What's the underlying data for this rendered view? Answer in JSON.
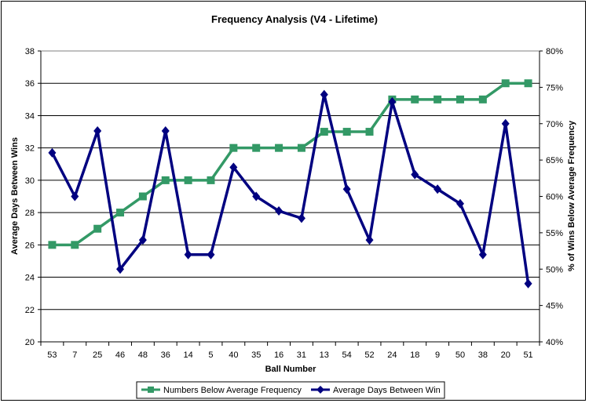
{
  "chart_data": {
    "type": "line",
    "title": "Frequency Analysis (V4 - Lifetime)",
    "xlabel": "Ball Number",
    "ylabel": "Average Days Between Wins",
    "y2label": "% of Wins Below Average Frequency",
    "ylim": [
      20,
      38
    ],
    "y2lim": [
      40,
      80
    ],
    "yticks": [
      "20",
      "22",
      "24",
      "26",
      "28",
      "30",
      "32",
      "34",
      "36",
      "38"
    ],
    "y2ticks": [
      "40%",
      "45%",
      "50%",
      "55%",
      "60%",
      "65%",
      "70%",
      "75%",
      "80%"
    ],
    "grid": true,
    "legend_position": "bottom",
    "categories": [
      "53",
      "7",
      "25",
      "46",
      "48",
      "36",
      "14",
      "5",
      "40",
      "35",
      "16",
      "31",
      "13",
      "54",
      "52",
      "24",
      "18",
      "9",
      "50",
      "38",
      "20",
      "51"
    ],
    "series": [
      {
        "name": "Numbers Below Average Frequency",
        "axis": "left",
        "color": "#339966",
        "marker": "square",
        "values": [
          26,
          26,
          27,
          28,
          29,
          30,
          30,
          30,
          32,
          32,
          32,
          32,
          33,
          33,
          33,
          35,
          35,
          35,
          35,
          35,
          36,
          36
        ]
      },
      {
        "name": "Average Days Between Win",
        "axis": "right",
        "color": "#000080",
        "marker": "diamond",
        "values": [
          66,
          60,
          69,
          50,
          54,
          69,
          52,
          52,
          64,
          60,
          58,
          57,
          74,
          61,
          54,
          73,
          63,
          61,
          59,
          52,
          70,
          48
        ]
      }
    ]
  }
}
